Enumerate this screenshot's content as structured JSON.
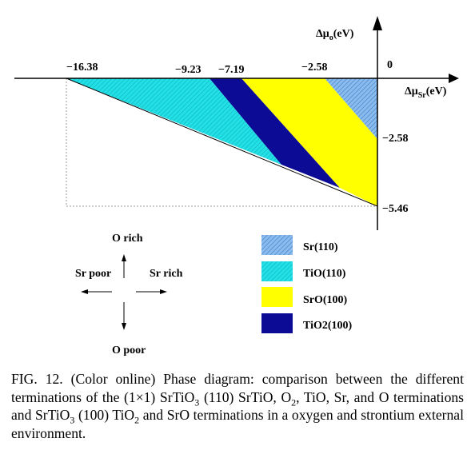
{
  "axes": {
    "y_label": "Δμ",
    "y_sub": "o",
    "y_unit": "(eV)",
    "x_label": "Δμ",
    "x_sub": "Sr",
    "x_unit": "(eV)",
    "origin_label": "0",
    "x_ticks": [
      "−16.38",
      "−9.23",
      "−7.19",
      "−2.58"
    ],
    "y_ticks": [
      "−2.58",
      "−5.46"
    ]
  },
  "regions": [
    {
      "name": "Sr(110)",
      "color": "#7fb0e8",
      "pattern": "hatch"
    },
    {
      "name": "TiO(110)",
      "color": "#19d8e0",
      "pattern": "hatch"
    },
    {
      "name": "SrO(100)",
      "color": "#ffff00",
      "pattern": "solid"
    },
    {
      "name": "TiO2(100)",
      "color": "#0b0b96",
      "pattern": "solid"
    }
  ],
  "chart_data": {
    "type": "area",
    "x_axis": "Δμ_Sr (eV)",
    "y_axis": "Δμ_o (eV)",
    "x_ticks": [
      -16.38,
      -9.23,
      -7.19,
      -2.58,
      0
    ],
    "y_ticks": [
      0,
      -2.58,
      -5.46
    ],
    "boundary_vertices": [
      [
        -16.38,
        0
      ],
      [
        0,
        0
      ],
      [
        0,
        -5.46
      ]
    ],
    "series": [
      {
        "name": "TiO(110)",
        "top_x_range": [
          -16.38,
          -9.23
        ]
      },
      {
        "name": "TiO2(100)",
        "top_x_range": [
          -9.23,
          -7.19
        ]
      },
      {
        "name": "SrO(100)",
        "top_x_range": [
          -7.19,
          -2.58
        ],
        "right_y_range": [
          -5.46,
          -2.58
        ]
      },
      {
        "name": "Sr(110)",
        "top_x_range": [
          -2.58,
          0
        ],
        "right_y_range": [
          -2.58,
          0
        ]
      }
    ]
  },
  "compass": {
    "up": "O rich",
    "down": "O poor",
    "left": "Sr poor",
    "right": "Sr rich"
  },
  "caption": {
    "prefix": "FIG. 12. (Color online) Phase diagram: comparison between the different terminations of the (1×1) SrTiO",
    "s1": "3",
    "mid1": " (110) SrTiO, O",
    "s2": "2",
    "mid2": ", TiO, Sr, and O terminations and SrTiO",
    "s3": "3",
    "mid3": " (100) TiO",
    "s4": "2",
    "suffix": " and SrO terminations in a oxygen and strontium external environment."
  }
}
